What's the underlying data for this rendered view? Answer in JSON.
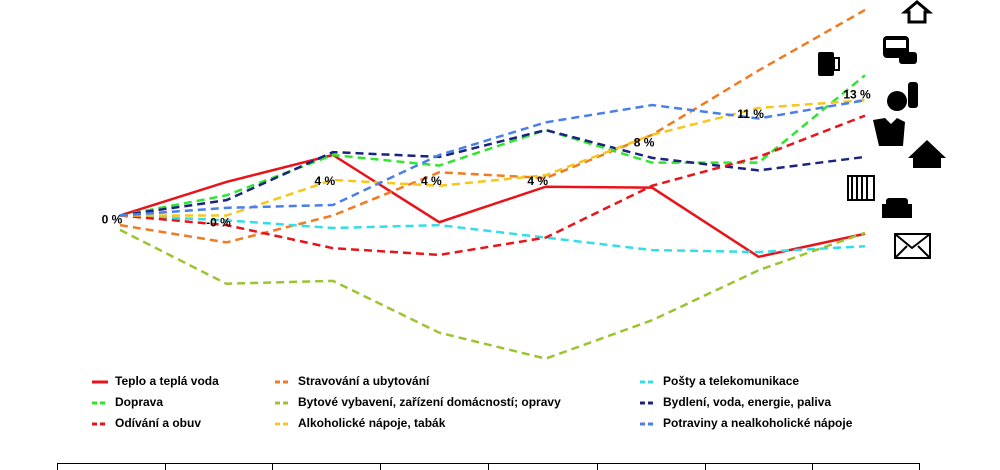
{
  "chart_data": {
    "type": "line",
    "categories": [
      null,
      null,
      null,
      null,
      null,
      null,
      null,
      null
    ],
    "ylim": [
      -16,
      22
    ],
    "series": [
      {
        "name": "Teplo a teplá voda",
        "color": "#e8141b",
        "dashed": false,
        "values": [
          0.5,
          4.0,
          6.8,
          -0.2,
          3.5,
          3.4,
          -3.8,
          -1.4
        ]
      },
      {
        "name": "Stravování a ubytování",
        "color": "#f07b22",
        "dashed": true,
        "values": [
          -0.5,
          -2.3,
          0.5,
          5.0,
          4.4,
          8.9,
          15.6,
          21.9
        ]
      },
      {
        "name": "Pošty a telekomunikace",
        "color": "#33dde8",
        "dashed": true,
        "values": [
          0.5,
          0,
          -0.8,
          -0.5,
          -1.8,
          -3.1,
          -3.3,
          -2.7
        ]
      },
      {
        "name": "Doprava",
        "color": "#2ee62e",
        "dashed": true,
        "values": [
          0.5,
          2.6,
          6.8,
          5.7,
          9.4,
          6.0,
          6.0,
          15.1
        ]
      },
      {
        "name": "Bytové vybavení, zařízení domácností; opravy",
        "color": "#9cc431",
        "dashed": true,
        "values": [
          -1,
          -6.6,
          -6.3,
          -11.7,
          -14.4,
          -10.4,
          -5.2,
          -1.3
        ]
      },
      {
        "name": "Bydlení, voda, energie, paliva",
        "color": "#1a237e",
        "dashed": true,
        "values": [
          0.5,
          2.1,
          7.1,
          6.6,
          9.4,
          6.5,
          5.2,
          6.6
        ]
      },
      {
        "name": "Odívání a obuv",
        "color": "#e8141b",
        "dashed": true,
        "values": [
          0.5,
          -0.5,
          -2.9,
          -3.6,
          -1.8,
          3.6,
          6.6,
          10.9
        ]
      },
      {
        "name": "Alkoholické nápoje, tabák",
        "color": "#f5c71a",
        "dashed": true,
        "values": [
          0.5,
          0.5,
          4.2,
          3.6,
          4.7,
          8.9,
          11.7,
          12.5
        ]
      },
      {
        "name": "Potraviny a nealkoholické nápoje",
        "color": "#4a7fe8",
        "dashed": true,
        "values": [
          0.5,
          1.3,
          1.6,
          6.8,
          10.2,
          12.0,
          10.6,
          12.5
        ]
      }
    ],
    "total_labels": {
      "values": [
        0,
        -0.3,
        4,
        4,
        4,
        8,
        11,
        13
      ],
      "value_labels": [
        "0 %",
        "-0 %",
        "4 %",
        "4 %",
        "4 %",
        "8 %",
        "11 %",
        "13 %"
      ]
    }
  }
}
